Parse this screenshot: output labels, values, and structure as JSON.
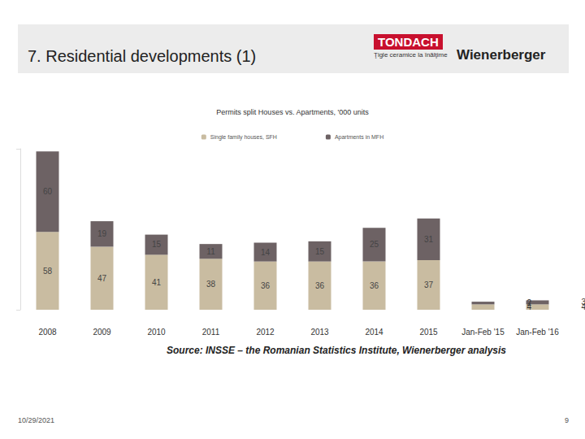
{
  "slide": {
    "title": "7. Residential developments (1)",
    "logo_left": "TONDACH",
    "logo_left_tagline": "Ţigle ceramice la înălţime",
    "logo_right": "Wienerberger",
    "source": "Source: INSSE – the Romanian Statistics Institute, Wienerberger analysis",
    "date": "10/29/2021",
    "page": "9"
  },
  "chart_data": {
    "type": "bar",
    "title": "Permits split Houses vs. Apartments, '000 units",
    "categories": [
      "2008",
      "2009",
      "2010",
      "2011",
      "2012",
      "2013",
      "2014",
      "2015",
      "Jan-Feb '15",
      "Jan-Feb '16"
    ],
    "series": [
      {
        "name": "Single family houses, SFH",
        "color": "#c9bca1",
        "values": [
          58,
          47,
          41,
          38,
          36,
          36,
          36,
          37,
          4,
          4
        ]
      },
      {
        "name": "Apartments in MFH",
        "color": "#6d6264",
        "values": [
          60,
          19,
          15,
          11,
          14,
          15,
          25,
          31,
          2,
          3
        ]
      }
    ],
    "stacked": true,
    "data_labels": true,
    "legend": "top",
    "grid": false,
    "tick_labels": "x",
    "ylim": [
      0,
      120
    ],
    "yticks": [
      0,
      120
    ]
  }
}
